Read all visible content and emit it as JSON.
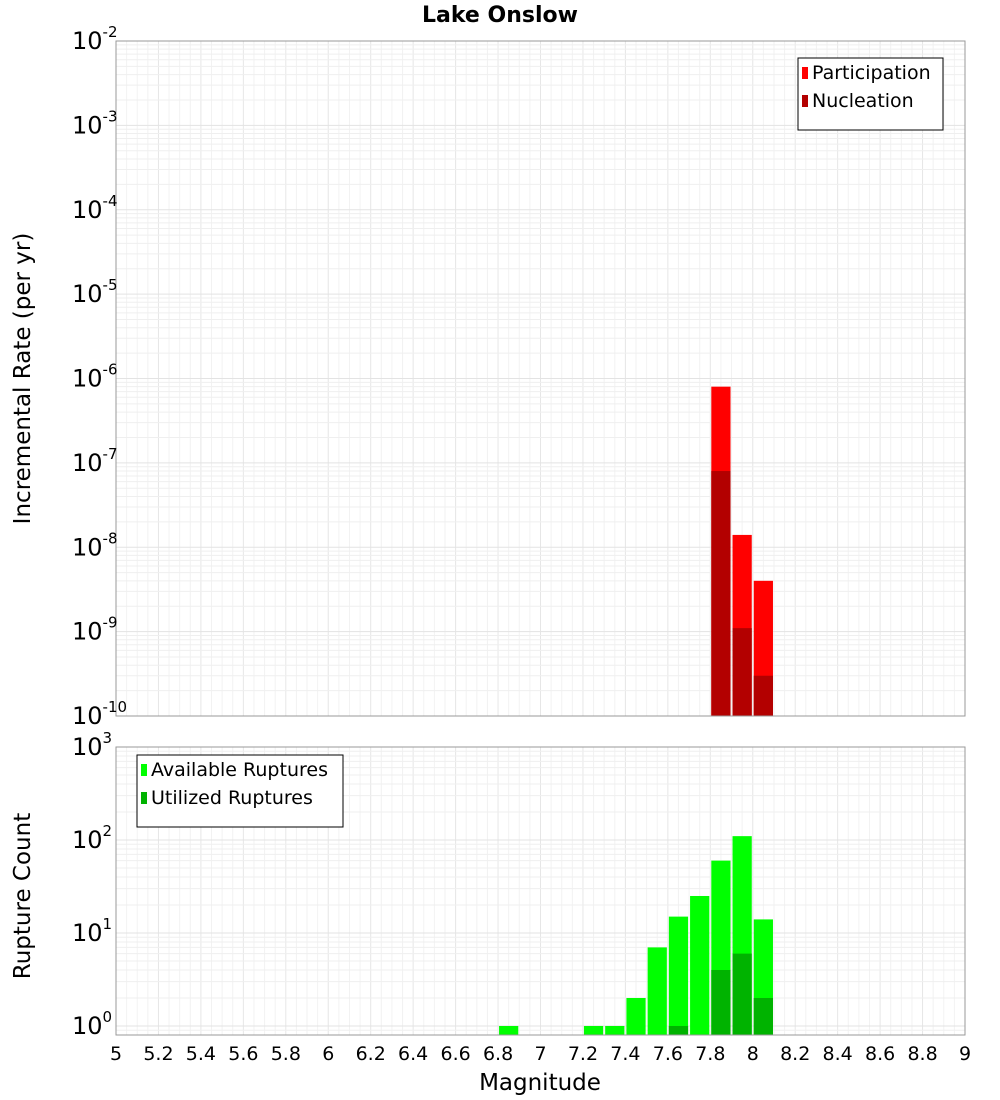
{
  "chart_data": {
    "title": "Lake Onslow",
    "xlabel": "Magnitude",
    "xlim": [
      5,
      9
    ],
    "xticks": [
      5,
      5.2,
      5.4,
      5.6,
      5.8,
      6,
      6.2,
      6.4,
      6.6,
      6.8,
      7,
      7.2,
      7.4,
      7.6,
      7.8,
      8,
      8.2,
      8.4,
      8.6,
      8.8,
      9
    ],
    "xtick_labels": [
      "5",
      "5.2",
      "5.4",
      "5.6",
      "5.8",
      "6",
      "6.2",
      "6.4",
      "6.6",
      "6.8",
      "7",
      "7.2",
      "7.4",
      "7.6",
      "7.8",
      "8",
      "8.2",
      "8.4",
      "8.6",
      "8.8",
      "9"
    ],
    "panels": [
      {
        "type": "bar",
        "yscale": "log",
        "ylabel": "Incremental Rate (per yr)",
        "ylim": [
          1e-10,
          0.01
        ],
        "ytick_exponents": [
          -10,
          -9,
          -8,
          -7,
          -6,
          -5,
          -4,
          -3,
          -2
        ],
        "legend_position": "top-right",
        "grid": true,
        "bin_width": 0.1,
        "series": [
          {
            "name": "Participation",
            "color": "#ff0000",
            "x": [
              7.85,
              7.95,
              8.05
            ],
            "values": [
              8e-07,
              1.4e-08,
              4e-09
            ]
          },
          {
            "name": "Nucleation",
            "color": "#b30000",
            "x": [
              7.85,
              7.95,
              8.05
            ],
            "values": [
              8e-08,
              1.1e-09,
              3e-10
            ]
          }
        ]
      },
      {
        "type": "bar",
        "yscale": "log",
        "ylabel": "Rupture Count",
        "ylim": [
          0.8,
          1000
        ],
        "ytick_exponents": [
          0,
          1,
          2,
          3
        ],
        "legend_position": "top-left",
        "grid": true,
        "bin_width": 0.1,
        "series": [
          {
            "name": "Available Ruptures",
            "color": "#00ff00",
            "x": [
              6.85,
              7.25,
              7.35,
              7.45,
              7.55,
              7.65,
              7.75,
              7.85,
              7.95,
              8.05
            ],
            "values": [
              1,
              1,
              1,
              2,
              7,
              15,
              25,
              60,
              110,
              14
            ]
          },
          {
            "name": "Utilized Ruptures",
            "color": "#00b300",
            "x": [
              7.65,
              7.85,
              7.95,
              8.05
            ],
            "values": [
              1,
              4,
              6,
              2
            ]
          }
        ]
      }
    ]
  }
}
